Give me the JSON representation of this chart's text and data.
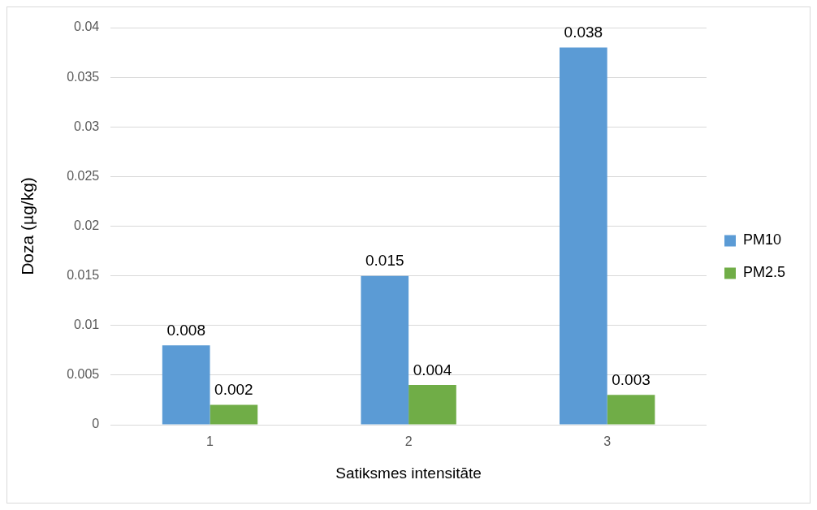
{
  "chart_data": {
    "type": "bar",
    "xlabel": "Satiksmes intensitāte",
    "ylabel": "Doza (µg/kg)",
    "categories": [
      "1",
      "2",
      "3"
    ],
    "series": [
      {
        "name": "PM10",
        "color": "#5b9bd5",
        "values": [
          0.008,
          0.015,
          0.038
        ]
      },
      {
        "name": "PM2.5",
        "color": "#70ad47",
        "values": [
          0.002,
          0.004,
          0.003
        ]
      }
    ],
    "ylim": [
      0,
      0.04
    ],
    "yticks": [
      0,
      0.005,
      0.01,
      0.015,
      0.02,
      0.025,
      0.03,
      0.035,
      0.04
    ],
    "grid": "y",
    "legend": "right",
    "data_labels": true
  }
}
